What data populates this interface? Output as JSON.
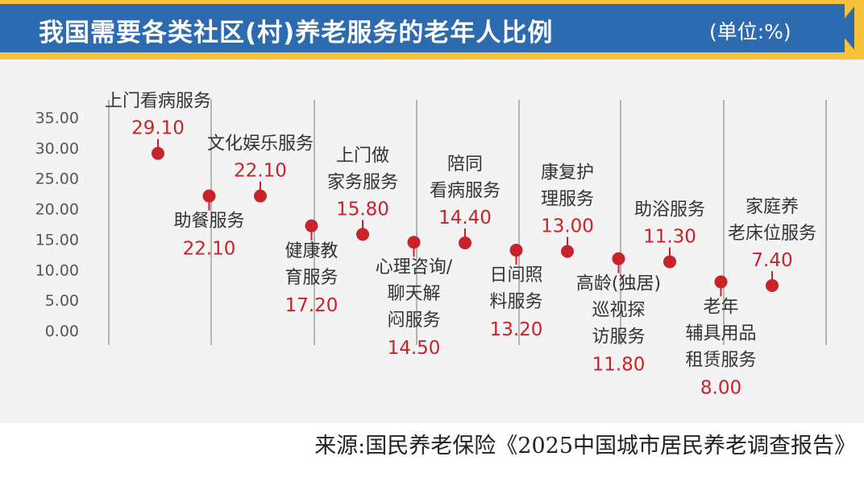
{
  "header": {
    "title": "我国需要各类社区(村)养老服务的老年人比例",
    "unit": "(单位:%)"
  },
  "source": "来源:国民养老保险《2025中国城市居民养老调查报告》",
  "colors": {
    "banner_blue": "#2c6bb0",
    "banner_accent": "#f7c23a",
    "point_red": "#c8232b",
    "chart_bg": "#f2f3f2"
  },
  "chart_data": {
    "type": "scatter",
    "title": "我国需要各类社区(村)养老服务的老年人比例",
    "unit": "%",
    "ylim": [
      0,
      35
    ],
    "yticks": [
      "35.00",
      "30.00",
      "25.00",
      "20.00",
      "15.00",
      "10.00",
      "5.00",
      "0.00"
    ],
    "categories": [
      "上门看病服务",
      "助餐服务",
      "文化娱乐服务",
      "健康教育服务",
      "上门做家务服务",
      "心理咨询/聊天解闷服务",
      "陪同看病服务",
      "日间照料服务",
      "康复护理服务",
      "高龄(独居)巡视探访服务",
      "助浴服务",
      "老年辅具用品租赁服务",
      "家庭养老床位服务"
    ],
    "values": [
      29.1,
      22.1,
      22.1,
      17.2,
      15.8,
      14.5,
      14.4,
      13.2,
      13.0,
      11.8,
      11.3,
      8.0,
      7.4
    ],
    "value_labels": [
      "29.10",
      "22.10",
      "22.10",
      "17.20",
      "15.80",
      "14.50",
      "14.40",
      "13.20",
      "13.00",
      "11.80",
      "11.30",
      "8.00",
      "7.40"
    ],
    "label_lines": [
      [
        "上门看病服务"
      ],
      [
        "助餐服务"
      ],
      [
        "文化娱乐服务"
      ],
      [
        "健康教",
        "育服务"
      ],
      [
        "上门做",
        "家务服务"
      ],
      [
        "心理咨询/",
        "聊天解",
        "闷服务"
      ],
      [
        "陪同",
        "看病服务"
      ],
      [
        "日间照",
        "料服务"
      ],
      [
        "康复护",
        "理服务"
      ],
      [
        "高龄(独居)",
        "巡视探",
        "访服务"
      ],
      [
        "助浴服务"
      ],
      [
        "老年",
        "辅具用品",
        "租赁服务"
      ],
      [
        "家庭养",
        "老床位服务"
      ]
    ],
    "label_position": [
      "above",
      "below",
      "above",
      "below",
      "above",
      "below",
      "above",
      "below",
      "above",
      "below",
      "above",
      "below",
      "above"
    ],
    "grid": false
  }
}
